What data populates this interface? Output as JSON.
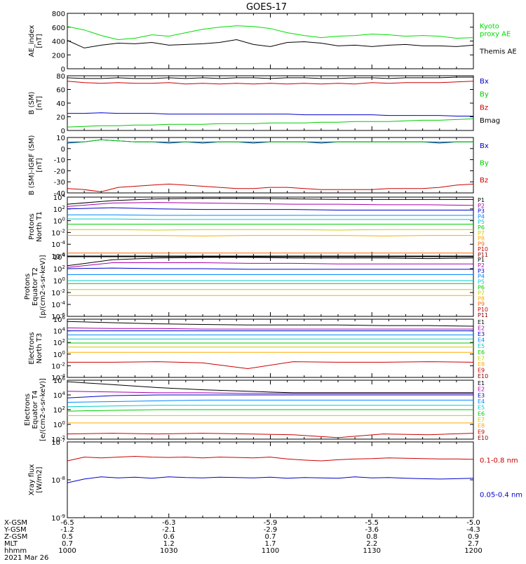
{
  "title": "GOES-17",
  "chart_data": [
    {
      "type": "line",
      "panel": "ae",
      "ylabel": "AE_index\n[nT]",
      "ylim": [
        0,
        800
      ],
      "yticks": [
        "0",
        "200",
        "400",
        "600",
        "800"
      ],
      "log": false,
      "series": [
        {
          "name": "Kyoto\nproxy AE",
          "color": "#00dd00",
          "values": [
            610,
            560,
            480,
            420,
            440,
            490,
            470,
            520,
            570,
            600,
            620,
            610,
            580,
            520,
            480,
            450,
            470,
            480,
            500,
            490,
            470,
            480,
            470,
            440,
            450
          ]
        },
        {
          "name": "Themis AE",
          "color": "#000000",
          "values": [
            410,
            300,
            340,
            370,
            360,
            380,
            340,
            350,
            360,
            380,
            420,
            350,
            320,
            380,
            390,
            370,
            330,
            340,
            320,
            340,
            350,
            330,
            330,
            320,
            340
          ]
        }
      ]
    },
    {
      "type": "line",
      "panel": "b",
      "ylabel": "B (SM)\n[nT]",
      "ylim": [
        0,
        80
      ],
      "yticks": [
        "0",
        "20",
        "40",
        "60",
        "80"
      ],
      "log": false,
      "series": [
        {
          "name": "Bx",
          "color": "#0000cc",
          "values": [
            25,
            25,
            26,
            25,
            25,
            25,
            24,
            24,
            24,
            24,
            24,
            24,
            24,
            24,
            23,
            23,
            23,
            23,
            23,
            22,
            22,
            22,
            22,
            21,
            21
          ]
        },
        {
          "name": "By",
          "color": "#00cc00",
          "values": [
            5,
            6,
            7,
            7,
            8,
            8,
            9,
            9,
            9,
            10,
            10,
            10,
            11,
            11,
            11,
            12,
            12,
            13,
            13,
            13,
            14,
            15,
            15,
            16,
            17
          ]
        },
        {
          "name": "Bz",
          "color": "#cc0000",
          "values": [
            72,
            70,
            69,
            70,
            69,
            69,
            70,
            68,
            69,
            68,
            69,
            68,
            69,
            68,
            69,
            68,
            69,
            68,
            70,
            69,
            70,
            70,
            70,
            71,
            72
          ]
        },
        {
          "name": "Bmag",
          "color": "#000000",
          "values": [
            77,
            76,
            76,
            77,
            76,
            76,
            77,
            76,
            77,
            76,
            77,
            77,
            76,
            77,
            77,
            76,
            76,
            77,
            77,
            76,
            77,
            77,
            77,
            78,
            78
          ]
        }
      ]
    },
    {
      "type": "line",
      "panel": "db",
      "ylabel": "B (SM)-IGRF (SM)\n[nT]",
      "ylim": [
        -40,
        10
      ],
      "yticks": [
        "-40",
        "-30",
        "-20",
        "-10",
        "0",
        "10"
      ],
      "log": false,
      "series": [
        {
          "name": "Bx",
          "color": "#0000cc",
          "values": [
            5,
            6,
            8,
            7,
            6,
            6,
            5,
            6,
            5,
            6,
            6,
            5,
            6,
            6,
            6,
            5,
            6,
            6,
            6,
            6,
            6,
            6,
            5,
            6,
            6
          ]
        },
        {
          "name": "By",
          "color": "#00cc00",
          "values": [
            6,
            6,
            8,
            7,
            6,
            6,
            6,
            6,
            6,
            6,
            6,
            6,
            6,
            6,
            6,
            6,
            6,
            6,
            6,
            6,
            6,
            6,
            6,
            6,
            6
          ]
        },
        {
          "name": "Bz",
          "color": "#cc0000",
          "values": [
            -36,
            -37,
            -39,
            -35,
            -34,
            -33,
            -32,
            -33,
            -34,
            -35,
            -36,
            -36,
            -35,
            -35,
            -36,
            -37,
            -37,
            -37,
            -37,
            -36,
            -36,
            -36,
            -35,
            -33,
            -32
          ]
        }
      ]
    },
    {
      "type": "line",
      "panel": "pn",
      "ylabel": "Protons\nNorth T1",
      "ylim": [
        -6,
        4
      ],
      "yticks": [
        "10^-6",
        "10^-4",
        "10^-2",
        "10^0",
        "10^2",
        "10^4"
      ],
      "log": true,
      "series": [
        {
          "name": "P1",
          "color": "#000000",
          "values": [
            2.8,
            3.4,
            3.7,
            3.8,
            3.8,
            3.7,
            3.6,
            3.6,
            3.6,
            3.6
          ]
        },
        {
          "name": "P2",
          "color": "#aa00aa",
          "values": [
            2.4,
            3.0,
            3.1,
            3.0,
            2.9,
            2.8,
            2.8,
            2.7,
            2.7,
            2.6
          ]
        },
        {
          "name": "P3",
          "color": "#0000cc",
          "values": [
            2.0,
            2.2,
            2.0,
            1.9,
            1.9,
            1.9,
            1.8,
            1.8,
            1.8,
            1.8
          ]
        },
        {
          "name": "P4",
          "color": "#0088ff",
          "values": [
            1.0,
            1.0,
            0.9,
            0.9,
            0.9,
            0.9,
            0.9,
            0.9,
            0.9,
            0.9
          ]
        },
        {
          "name": "P5",
          "color": "#00cccc",
          "values": [
            0.3,
            0.3,
            0.2,
            0.2,
            0.2,
            0.2,
            0.2,
            0.2,
            0.2,
            0.2
          ]
        },
        {
          "name": "P6",
          "color": "#00cc00",
          "values": [
            -0.6,
            -0.6,
            -0.6,
            -0.6,
            -0.6,
            -0.6,
            -0.6,
            -0.6,
            -0.6,
            -0.6
          ]
        },
        {
          "name": "P7",
          "color": "#cccc00",
          "values": [
            -1.5,
            -1.5,
            -1.6,
            -1.5,
            -1.5,
            -1.5,
            -1.6,
            -1.5,
            -1.5,
            -1.5
          ]
        },
        {
          "name": "P8",
          "color": "#ffaa00",
          "values": [
            -2.5,
            -2.5,
            -2.5,
            -2.6,
            -2.5,
            -2.5,
            -2.5,
            -2.6,
            -2.5,
            -2.5
          ]
        },
        {
          "name": "P9",
          "color": "#ff6600",
          "values": [
            -5.5,
            -5.5,
            -5.5,
            -5.5,
            -5.5,
            -5.5,
            -5.5,
            -5.5,
            -5.5,
            -5.5
          ]
        },
        {
          "name": "P10",
          "color": "#cc0000",
          "values": []
        },
        {
          "name": "P11",
          "color": "#880000",
          "values": []
        }
      ]
    },
    {
      "type": "line",
      "panel": "pe",
      "ylabel": "Protons\nEquator T2\n[p/(cm2-s-sr-keV)]",
      "ylim": [
        -6,
        4
      ],
      "yticks": [
        "10^-6",
        "10^-4",
        "10^-2",
        "10^0",
        "10^2",
        "10^4"
      ],
      "log": true,
      "series": [
        {
          "name": "P1",
          "color": "#000000",
          "values": [
            2.5,
            3.5,
            3.8,
            3.9,
            3.9,
            3.8,
            3.8,
            3.8,
            3.7,
            3.8
          ]
        },
        {
          "name": "P2",
          "color": "#aa00aa",
          "values": [
            2.2,
            3.0,
            3.0,
            3.0,
            2.9,
            2.9,
            2.8,
            2.8,
            2.8,
            2.8
          ]
        },
        {
          "name": "P3",
          "color": "#0000cc",
          "values": [
            2.0,
            2.1,
            2.0,
            2.0,
            1.9,
            1.9,
            1.9,
            1.9,
            1.9,
            1.9
          ]
        },
        {
          "name": "P4",
          "color": "#0088ff",
          "values": [
            1.0,
            1.0,
            1.0,
            1.0,
            1.0,
            1.0,
            1.0,
            1.0,
            1.0,
            1.0
          ]
        },
        {
          "name": "P5",
          "color": "#00cccc",
          "values": [
            0.0,
            0.0,
            0.0,
            0.0,
            0.0,
            0.0,
            0.0,
            0.0,
            0.0,
            0.0
          ]
        },
        {
          "name": "P6",
          "color": "#00cc00",
          "values": [
            -0.5,
            -0.5,
            -0.5,
            -0.5,
            -0.5,
            -0.5,
            -0.5,
            -0.5,
            -0.5,
            -0.5
          ]
        },
        {
          "name": "P7",
          "color": "#cccc00",
          "values": [
            -1.5,
            -1.5,
            -1.5,
            -1.5,
            -1.5,
            -1.5,
            -1.5,
            -1.5,
            -1.5,
            -1.5
          ]
        },
        {
          "name": "P8",
          "color": "#ffaa00",
          "values": [
            -2.5,
            -2.5,
            -2.5,
            -2.5,
            -2.5,
            -2.5,
            -2.5,
            -2.5,
            -2.5,
            -2.5
          ]
        },
        {
          "name": "P9",
          "color": "#ff6600",
          "values": []
        },
        {
          "name": "P10",
          "color": "#cc0000",
          "values": []
        },
        {
          "name": "P11",
          "color": "#880000",
          "values": []
        }
      ]
    },
    {
      "type": "line",
      "panel": "en",
      "ylabel": "Electrons\nNorth T3",
      "ylim": [
        -4,
        6
      ],
      "yticks": [
        "10^-4",
        "10^-2",
        "10^0",
        "10^2",
        "10^4",
        "10^6"
      ],
      "log": true,
      "series": [
        {
          "name": "E1",
          "color": "#000000",
          "values": [
            5.6,
            5.4,
            5.2,
            5.1,
            5.0,
            5.0,
            5.0,
            4.9,
            4.9,
            4.8
          ]
        },
        {
          "name": "E2",
          "color": "#aa00aa",
          "values": [
            4.5,
            4.4,
            4.4,
            4.3,
            4.3,
            4.3,
            4.3,
            4.3,
            4.3,
            4.3
          ]
        },
        {
          "name": "E3",
          "color": "#0000cc",
          "values": [
            4.0,
            4.0,
            4.0,
            4.0,
            4.0,
            4.0,
            4.0,
            4.0,
            4.0,
            4.0
          ]
        },
        {
          "name": "E4",
          "color": "#0088ff",
          "values": [
            3.3,
            3.3,
            3.3,
            3.3,
            3.3,
            3.3,
            3.3,
            3.3,
            3.3,
            3.3
          ]
        },
        {
          "name": "E5",
          "color": "#00cccc",
          "values": [
            2.6,
            2.6,
            2.6,
            2.6,
            2.6,
            2.6,
            2.6,
            2.6,
            2.6,
            2.6
          ]
        },
        {
          "name": "E6",
          "color": "#00cc00",
          "values": [
            1.9,
            1.9,
            1.9,
            1.9,
            1.9,
            1.9,
            1.9,
            1.9,
            1.9,
            1.9
          ]
        },
        {
          "name": "E7",
          "color": "#cccc00",
          "values": [
            1.2,
            1.2,
            1.2,
            1.2,
            1.2,
            1.2,
            1.2,
            1.2,
            1.2,
            1.2
          ]
        },
        {
          "name": "E8",
          "color": "#ffaa00",
          "values": [
            0.3,
            0.3,
            0.3,
            0.3,
            0.3,
            0.3,
            0.3,
            0.3,
            0.3,
            0.3
          ]
        },
        {
          "name": "E9",
          "color": "#cc0000",
          "values": [
            -1.4,
            -1.4,
            -1.3,
            -1.5,
            -2.5,
            -1.3,
            -1.4,
            -1.4,
            -1.3,
            -1.4
          ]
        },
        {
          "name": "E10",
          "color": "#880000",
          "values": []
        }
      ]
    },
    {
      "type": "line",
      "panel": "ee",
      "ylabel": "Electrons\nEquator T4\n[e/(cm2-s-sr-keV)]",
      "ylim": [
        -2,
        6
      ],
      "yticks": [
        "10^-2",
        "10^0",
        "10^2",
        "10^4",
        "10^6"
      ],
      "log": true,
      "series": [
        {
          "name": "E1",
          "color": "#000000",
          "values": [
            5.8,
            5.4,
            5.0,
            4.7,
            4.5,
            4.3,
            4.3,
            4.3,
            4.3,
            4.3
          ]
        },
        {
          "name": "E2",
          "color": "#aa00aa",
          "values": [
            4.5,
            4.4,
            4.3,
            4.3,
            4.2,
            4.2,
            4.2,
            4.2,
            4.2,
            4.2
          ]
        },
        {
          "name": "E3",
          "color": "#0000cc",
          "values": [
            3.6,
            3.9,
            4.0,
            4.0,
            4.0,
            4.0,
            4.0,
            4.0,
            4.0,
            4.0
          ]
        },
        {
          "name": "E4",
          "color": "#0088ff",
          "values": [
            3.0,
            3.1,
            3.2,
            3.3,
            3.3,
            3.3,
            3.3,
            3.3,
            3.3,
            3.3
          ]
        },
        {
          "name": "E5",
          "color": "#00cccc",
          "values": [
            2.4,
            2.5,
            2.6,
            2.6,
            2.6,
            2.6,
            2.6,
            2.6,
            2.6,
            2.6
          ]
        },
        {
          "name": "E6",
          "color": "#00cc00",
          "values": [
            1.8,
            1.9,
            2.0,
            2.0,
            2.0,
            2.0,
            2.0,
            2.0,
            2.0,
            2.0
          ]
        },
        {
          "name": "E7",
          "color": "#cccc00",
          "values": [
            1.2,
            1.2,
            1.2,
            1.2,
            1.2,
            1.2,
            1.2,
            1.2,
            1.2,
            1.2
          ]
        },
        {
          "name": "E8",
          "color": "#ffaa00",
          "values": [
            0.2,
            0.2,
            0.2,
            0.2,
            0.2,
            0.2,
            0.2,
            0.2,
            0.2,
            0.2
          ]
        },
        {
          "name": "E9",
          "color": "#cc0000",
          "values": [
            -1.3,
            -1.2,
            -1.3,
            -1.2,
            -1.3,
            -1.4,
            -1.8,
            -1.3,
            -1.4,
            -1.2
          ]
        },
        {
          "name": "E10",
          "color": "#880000",
          "values": []
        }
      ]
    },
    {
      "type": "line",
      "panel": "xray",
      "ylabel": "Xray flux\n[W/m2]",
      "ylim": [
        -9,
        -7
      ],
      "yticks": [
        "10^-9",
        "10^-8",
        "10^-7"
      ],
      "log": true,
      "series": [
        {
          "name": "0.1-0.8 nm",
          "color": "#cc0000",
          "values": [
            -7.5,
            -7.4,
            -7.42,
            -7.4,
            -7.38,
            -7.4,
            -7.41,
            -7.4,
            -7.42,
            -7.4,
            -7.41,
            -7.42,
            -7.4,
            -7.45,
            -7.48,
            -7.5,
            -7.47,
            -7.45,
            -7.44,
            -7.42,
            -7.43,
            -7.44,
            -7.45,
            -7.45,
            -7.46
          ]
        },
        {
          "name": "0.05-0.4 nm",
          "color": "#0000cc",
          "values": [
            -8.08,
            -7.98,
            -7.92,
            -7.95,
            -7.93,
            -7.96,
            -7.92,
            -7.94,
            -7.95,
            -7.93,
            -7.94,
            -7.95,
            -7.93,
            -7.96,
            -7.94,
            -7.95,
            -7.96,
            -7.92,
            -7.95,
            -7.94,
            -7.96,
            -7.97,
            -7.98,
            -7.97,
            -7.96
          ]
        }
      ]
    }
  ],
  "xaxis": {
    "row_labels": [
      "X-GSM",
      "Y-GSM",
      "Z-GSM",
      "MLT",
      "hhmm",
      "2021 Mar 26"
    ],
    "ticks": [
      {
        "vals": [
          "-6.5",
          "-1.2",
          "0.5",
          "0.7",
          "1000"
        ]
      },
      {
        "vals": [
          "-6.3",
          "-2.1",
          "0.6",
          "1.2",
          "1030"
        ]
      },
      {
        "vals": [
          "-5.9",
          "-2.9",
          "0.7",
          "1.7",
          "1100"
        ]
      },
      {
        "vals": [
          "-5.5",
          "-3.6",
          "0.8",
          "2.2",
          "1130"
        ]
      },
      {
        "vals": [
          "-5.0",
          "-4.3",
          "0.9",
          "2.7",
          "1200"
        ]
      }
    ]
  }
}
